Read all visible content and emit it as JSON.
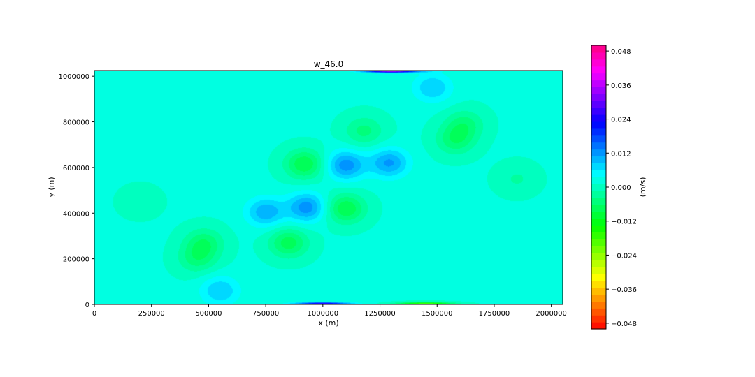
{
  "chart_data": {
    "type": "heatmap",
    "title": "w_46.0",
    "xlabel": "x (m)",
    "ylabel": "y (m)",
    "xlim": [
      0,
      2050000
    ],
    "ylim": [
      0,
      1025000
    ],
    "x_ticks": [
      0,
      250000,
      500000,
      750000,
      1000000,
      1250000,
      1500000,
      1750000,
      2000000
    ],
    "y_ticks": [
      0,
      200000,
      400000,
      600000,
      800000,
      1000000
    ],
    "x_tick_labels": [
      "0",
      "250000",
      "500000",
      "750000",
      "1000000",
      "1250000",
      "1500000",
      "1750000",
      "2000000"
    ],
    "y_tick_labels": [
      "0",
      "200000",
      "400000",
      "600000",
      "800000",
      "1000000"
    ],
    "grid": false,
    "colorbar": {
      "label": "(m/s)",
      "range": [
        -0.05,
        0.05
      ],
      "ticks": [
        -0.048,
        -0.036,
        -0.024,
        -0.012,
        0.0,
        0.012,
        0.024,
        0.036,
        0.048
      ],
      "tick_labels": [
        "−0.048",
        "−0.036",
        "−0.024",
        "−0.012",
        "0.000",
        "0.012",
        "0.024",
        "0.036",
        "0.048"
      ],
      "colormap": "gist_rainbow_r",
      "levels": 41
    },
    "background_value": 0.0015,
    "features": [
      {
        "x": 1100000,
        "y": 610000,
        "value": 0.011
      },
      {
        "x": 930000,
        "y": 425000,
        "value": 0.011
      },
      {
        "x": 750000,
        "y": 405000,
        "value": 0.009
      },
      {
        "x": 1290000,
        "y": 620000,
        "value": 0.01
      },
      {
        "x": 550000,
        "y": 60000,
        "value": 0.007
      },
      {
        "x": 1480000,
        "y": 950000,
        "value": 0.007
      },
      {
        "x": 920000,
        "y": 615000,
        "value": -0.01
      },
      {
        "x": 1100000,
        "y": 420000,
        "value": -0.01
      },
      {
        "x": 850000,
        "y": 270000,
        "value": -0.009
      },
      {
        "x": 1180000,
        "y": 760000,
        "value": -0.006
      },
      {
        "x": 1580000,
        "y": 720000,
        "value": -0.007
      },
      {
        "x": 1620000,
        "y": 790000,
        "value": -0.006
      },
      {
        "x": 480000,
        "y": 270000,
        "value": -0.007
      },
      {
        "x": 450000,
        "y": 200000,
        "value": -0.006
      },
      {
        "x": 1850000,
        "y": 550000,
        "value": -0.003
      },
      {
        "x": 200000,
        "y": 450000,
        "value": -0.002
      },
      {
        "x": 1000000,
        "y": 0,
        "value": 0.03
      },
      {
        "x": 1300000,
        "y": 1025000,
        "value": 0.04
      },
      {
        "x": 1450000,
        "y": 0,
        "value": -0.025
      }
    ]
  }
}
